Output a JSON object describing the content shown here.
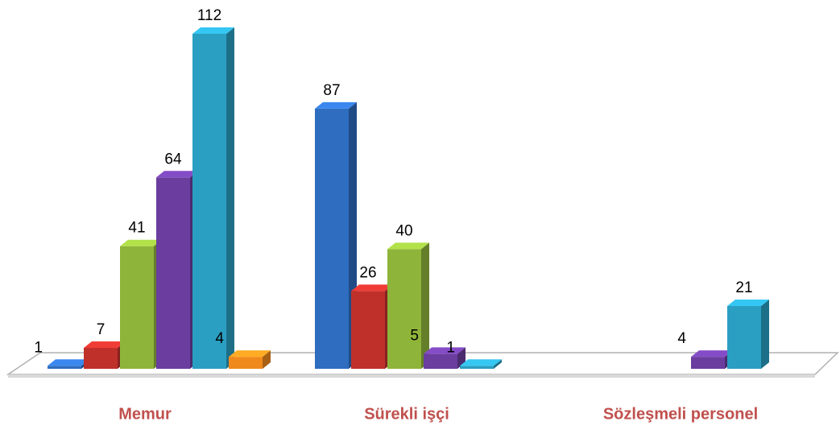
{
  "chart_data": {
    "type": "bar3d",
    "categories": [
      "Memur",
      "Sürekli işçi",
      "Sözleşmeli personel"
    ],
    "series": [
      {
        "color": "#2e6dbf",
        "values": [
          1,
          87,
          null
        ]
      },
      {
        "color": "#c0302b",
        "values": [
          7,
          26,
          null
        ]
      },
      {
        "color": "#8fb43a",
        "values": [
          41,
          40,
          null
        ]
      },
      {
        "color": "#6a3d9f",
        "values": [
          64,
          5,
          4
        ]
      },
      {
        "color": "#2a9fc2",
        "values": [
          112,
          1,
          21
        ]
      },
      {
        "color": "#f0891c",
        "values": [
          4,
          null,
          null
        ]
      }
    ]
  }
}
